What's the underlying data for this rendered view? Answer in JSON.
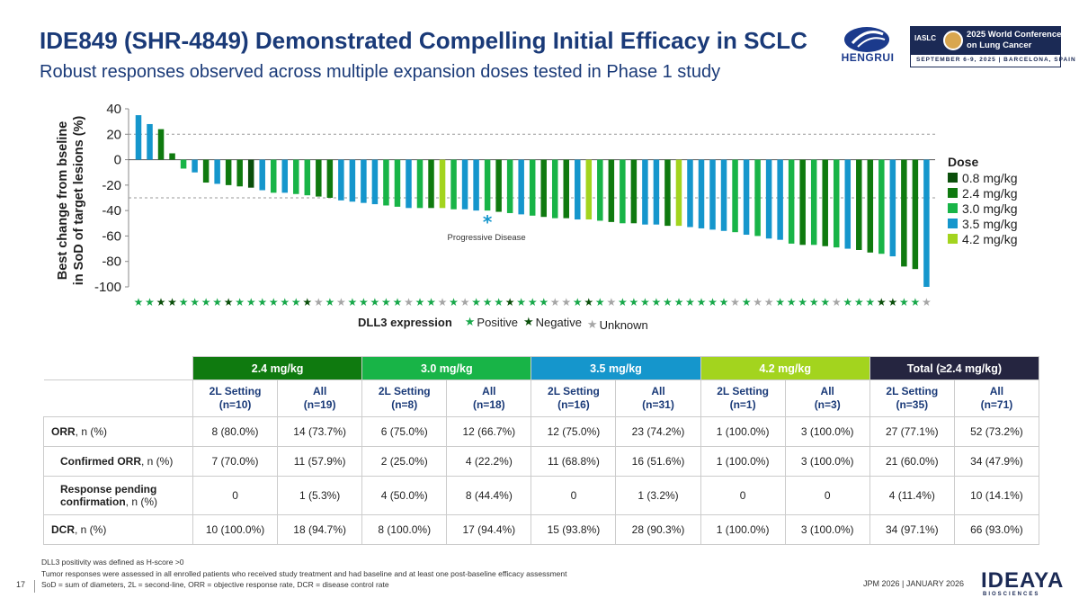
{
  "header": {
    "title": "IDE849 (SHR-4849) Demonstrated Compelling Initial Efficacy in SCLC",
    "subtitle": "Robust responses observed across multiple expansion doses tested in Phase 1 study"
  },
  "logos": {
    "hengrui": "HENGRUI",
    "wclc_org": "IASLC",
    "wclc_line1": "2025 World Conference",
    "wclc_line2": "on Lung Cancer",
    "wclc_date": "SEPTEMBER 6-9, 2025 | BARCELONA, SPAIN",
    "ideaya": "IDEAYA",
    "ideaya_sub": "BIOSCIENCES"
  },
  "chart_data": {
    "type": "bar",
    "title": "",
    "ylabel_line1": "Best change from bseline",
    "ylabel_line2": "in SoD of target lesions (%)",
    "ylim": [
      -100,
      40
    ],
    "yticks": [
      40,
      20,
      0,
      -20,
      -40,
      -60,
      -80,
      -100
    ],
    "reference_lines": [
      20,
      -30
    ],
    "annotation": {
      "text": "Progressive Disease",
      "marker": "*",
      "bar_index": 31
    },
    "dose_colors": {
      "0.8": "#0b4f0b",
      "2.4": "#0f7a0f",
      "3.0": "#18b447",
      "3.5": "#1596cc",
      "4.2": "#a3d41e"
    },
    "legend_title": "Dose",
    "legend": [
      "0.8 mg/kg",
      "2.4 mg/kg",
      "3.0 mg/kg",
      "3.5 mg/kg",
      "4.2 mg/kg"
    ],
    "values": [
      35,
      28,
      24,
      5,
      -7,
      -10,
      -18,
      -19,
      -20,
      -21,
      -22,
      -24,
      -26,
      -26,
      -27,
      -28,
      -29,
      -30,
      -32,
      -33,
      -34,
      -35,
      -36,
      -37,
      -38,
      -38,
      -38,
      -38,
      -39,
      -39,
      -40,
      -40,
      -41,
      -42,
      -43,
      -44,
      -45,
      -46,
      -46,
      -47,
      -47,
      -48,
      -49,
      -50,
      -50,
      -51,
      -51,
      -52,
      -52,
      -53,
      -54,
      -55,
      -56,
      -57,
      -59,
      -60,
      -62,
      -63,
      -66,
      -67,
      -67,
      -68,
      -69,
      -70,
      -71,
      -73,
      -74,
      -76,
      -84,
      -86,
      -100
    ],
    "dose": [
      "3.5",
      "3.5",
      "2.4",
      "2.4",
      "3.0",
      "3.5",
      "2.4",
      "3.5",
      "2.4",
      "2.4",
      "0.8",
      "3.5",
      "3.0",
      "3.5",
      "3.0",
      "3.0",
      "2.4",
      "2.4",
      "3.5",
      "3.5",
      "3.5",
      "3.5",
      "3.0",
      "3.0",
      "3.5",
      "3.0",
      "2.4",
      "4.2",
      "3.0",
      "3.5",
      "3.5",
      "3.0",
      "2.4",
      "3.0",
      "3.5",
      "3.0",
      "2.4",
      "3.0",
      "2.4",
      "3.5",
      "4.2",
      "3.0",
      "2.4",
      "3.0",
      "2.4",
      "3.5",
      "3.5",
      "2.4",
      "4.2",
      "3.5",
      "3.5",
      "3.5",
      "3.5",
      "3.0",
      "3.5",
      "3.0",
      "3.5",
      "3.5",
      "3.0",
      "2.4",
      "3.0",
      "2.4",
      "3.0",
      "3.5",
      "2.4",
      "2.4",
      "3.0",
      "3.5",
      "2.4",
      "2.4",
      "3.5"
    ],
    "dll3": [
      "P",
      "P",
      "N",
      "N",
      "P",
      "P",
      "P",
      "P",
      "N",
      "P",
      "P",
      "P",
      "P",
      "P",
      "P",
      "N",
      "U",
      "P",
      "U",
      "P",
      "P",
      "P",
      "P",
      "P",
      "U",
      "P",
      "P",
      "U",
      "P",
      "U",
      "P",
      "P",
      "P",
      "N",
      "P",
      "P",
      "P",
      "U",
      "U",
      "P",
      "N",
      "P",
      "U",
      "P",
      "P",
      "P",
      "P",
      "P",
      "P",
      "P",
      "P",
      "P",
      "P",
      "U",
      "P",
      "U",
      "U",
      "P",
      "P",
      "P",
      "P",
      "P",
      "U",
      "P",
      "P",
      "P",
      "N",
      "N",
      "P",
      "P",
      "U"
    ],
    "dll3_legend": {
      "title": "DLL3 expression",
      "positive": "Positive",
      "negative": "Negative",
      "unknown": "Unknown"
    },
    "dll3_colors": {
      "P": "#18a84a",
      "N": "#0b4f0b",
      "U": "#a6a6a6"
    }
  },
  "table": {
    "groups": [
      {
        "label": "2.4 mg/kg",
        "color": "#0f7a0f"
      },
      {
        "label": "3.0 mg/kg",
        "color": "#18b447"
      },
      {
        "label": "3.5 mg/kg",
        "color": "#1596cc"
      },
      {
        "label": "4.2 mg/kg",
        "color": "#a3d41e"
      },
      {
        "label": "Total (≥2.4 mg/kg)",
        "color": "#252540"
      }
    ],
    "subheaders": [
      [
        "2L Setting",
        "(n=10)"
      ],
      [
        "All",
        "(n=19)"
      ],
      [
        "2L Setting",
        "(n=8)"
      ],
      [
        "All",
        "(n=18)"
      ],
      [
        "2L Setting",
        "(n=16)"
      ],
      [
        "All",
        "(n=31)"
      ],
      [
        "2L Setting",
        "(n=1)"
      ],
      [
        "All",
        "(n=3)"
      ],
      [
        "2L Setting",
        "(n=35)"
      ],
      [
        "All",
        "(n=71)"
      ]
    ],
    "rows": [
      {
        "label_bold": "ORR",
        "label_rest": ", n (%)",
        "label_bold2": "",
        "label_rest2": "",
        "values": [
          "8 (80.0%)",
          "14 (73.7%)",
          "6 (75.0%)",
          "12 (66.7%)",
          "12 (75.0%)",
          "23 (74.2%)",
          "1 (100.0%)",
          "3 (100.0%)",
          "27 (77.1%)",
          "52 (73.2%)"
        ]
      },
      {
        "label_bold": "Confirmed ORR",
        "label_rest": ", n (%)",
        "label_bold2": "",
        "label_rest2": "",
        "values": [
          "7 (70.0%)",
          "11 (57.9%)",
          "2 (25.0%)",
          "4 (22.2%)",
          "11 (68.8%)",
          "16 (51.6%)",
          "1 (100.0%)",
          "3 (100.0%)",
          "21 (60.0%)",
          "34 (47.9%)"
        ]
      },
      {
        "label_bold": "Response pending",
        "label_rest": "",
        "label_bold2": "confirmation",
        "label_rest2": ", n (%)",
        "values": [
          "0",
          "1 (5.3%)",
          "4 (50.0%)",
          "8 (44.4%)",
          "0",
          "1 (3.2%)",
          "0",
          "0",
          "4 (11.4%)",
          "10 (14.1%)"
        ]
      },
      {
        "label_bold": "DCR",
        "label_rest": ", n (%)",
        "label_bold2": "",
        "label_rest2": "",
        "values": [
          "10 (100.0%)",
          "18 (94.7%)",
          "8 (100.0%)",
          "17 (94.4%)",
          "15 (93.8%)",
          "28 (90.3%)",
          "1 (100.0%)",
          "3 (100.0%)",
          "34 (97.1%)",
          "66 (93.0%)"
        ]
      }
    ]
  },
  "footer": {
    "notes": [
      "DLL3 positivity was defined as H-score >0",
      "Tumor responses were assessed in all enrolled patients who received study treatment and had baseline and at least one post-baseline efficacy assessment",
      "SoD =  sum of diameters, 2L = second-line, ORR = objective response rate, DCR = disease control rate"
    ],
    "page": "17",
    "event": "JPM 2026  | JANUARY 2026"
  }
}
